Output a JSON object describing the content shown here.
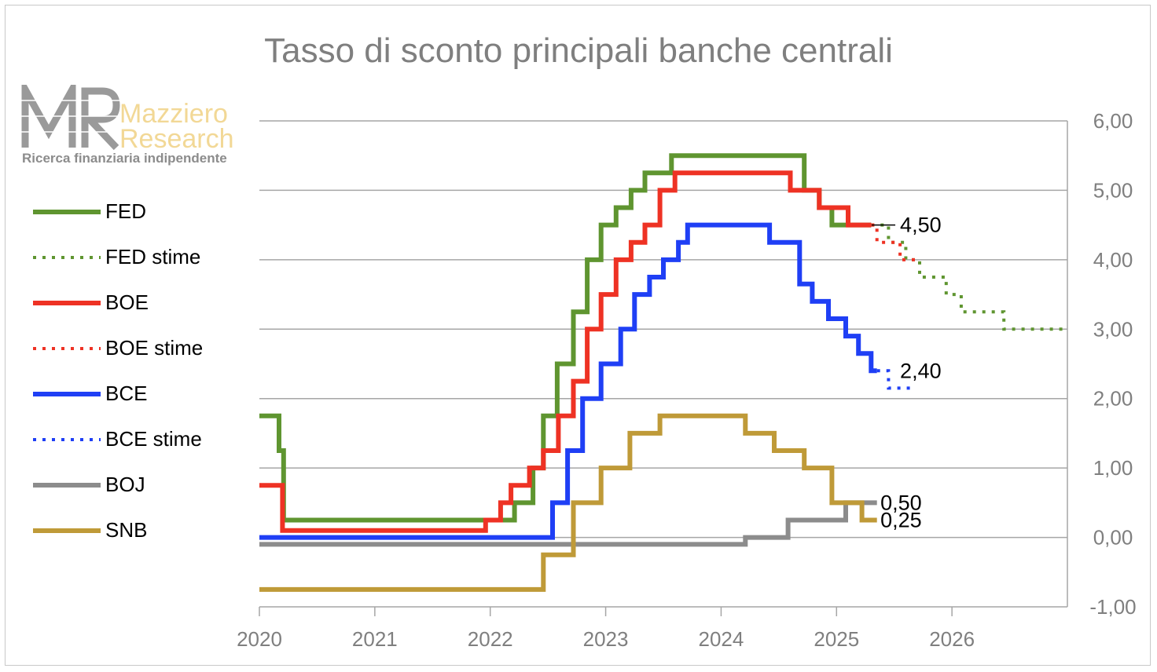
{
  "title": "Tasso di sconto principali banche centrali",
  "logo": {
    "mark": "MR",
    "name_line1": "Mazziero",
    "name_line2": "Research",
    "tagline": "Ricerca finanziaria indipendente"
  },
  "colors": {
    "fed": "#5f9530",
    "boe": "#ee3224",
    "bce": "#1f3ff5",
    "boj": "#8c8c8c",
    "snb": "#bf9a38",
    "grid": "#a6a6a6",
    "axis_text": "#7f7f7f",
    "title": "#7f7f7f"
  },
  "legend": [
    {
      "label": "FED",
      "series": "FED"
    },
    {
      "label": "FED stime",
      "series": "FED stime"
    },
    {
      "label": "BOE",
      "series": "BOE"
    },
    {
      "label": "BOE stime",
      "series": "BOE stime"
    },
    {
      "label": "BCE",
      "series": "BCE"
    },
    {
      "label": "BCE stime",
      "series": "BCE stime"
    },
    {
      "label": "BOJ",
      "series": "BOJ"
    },
    {
      "label": "SNB",
      "series": "SNB"
    }
  ],
  "chart_data": {
    "type": "line",
    "title": "Tasso di sconto principali banche centrali",
    "xlabel": "",
    "ylabel": "",
    "x_ticks": [
      "2020",
      "2021",
      "2022",
      "2023",
      "2024",
      "2025",
      "2026"
    ],
    "xlim": [
      2020,
      2027
    ],
    "y_ticks": [
      "6,00",
      "5,00",
      "4,00",
      "3,00",
      "2,00",
      "1,00",
      "0,00",
      "-1,00"
    ],
    "ylim": [
      -1,
      6
    ],
    "y_axis_side": "right",
    "grid": "horizontal",
    "legend_position": "left",
    "series": [
      {
        "name": "FED",
        "style": "solid",
        "color": "#5f9530",
        "points": [
          [
            2020.0,
            1.75
          ],
          [
            2020.17,
            1.75
          ],
          [
            2020.17,
            1.25
          ],
          [
            2020.21,
            1.25
          ],
          [
            2020.21,
            0.25
          ],
          [
            2022.21,
            0.25
          ],
          [
            2022.21,
            0.5
          ],
          [
            2022.37,
            0.5
          ],
          [
            2022.37,
            1.0
          ],
          [
            2022.46,
            1.0
          ],
          [
            2022.46,
            1.75
          ],
          [
            2022.58,
            1.75
          ],
          [
            2022.58,
            2.5
          ],
          [
            2022.72,
            2.5
          ],
          [
            2022.72,
            3.25
          ],
          [
            2022.84,
            3.25
          ],
          [
            2022.84,
            4.0
          ],
          [
            2022.96,
            4.0
          ],
          [
            2022.96,
            4.5
          ],
          [
            2023.09,
            4.5
          ],
          [
            2023.09,
            4.75
          ],
          [
            2023.22,
            4.75
          ],
          [
            2023.22,
            5.0
          ],
          [
            2023.34,
            5.0
          ],
          [
            2023.34,
            5.25
          ],
          [
            2023.57,
            5.25
          ],
          [
            2023.57,
            5.5
          ],
          [
            2024.72,
            5.5
          ],
          [
            2024.72,
            5.0
          ],
          [
            2024.85,
            5.0
          ],
          [
            2024.85,
            4.75
          ],
          [
            2024.96,
            4.75
          ],
          [
            2024.96,
            4.5
          ],
          [
            2025.3,
            4.5
          ]
        ]
      },
      {
        "name": "FED stime",
        "style": "dotted",
        "color": "#5f9530",
        "points": [
          [
            2025.3,
            4.5
          ],
          [
            2025.45,
            4.5
          ],
          [
            2025.45,
            4.25
          ],
          [
            2025.6,
            4.25
          ],
          [
            2025.6,
            4.0
          ],
          [
            2025.72,
            4.0
          ],
          [
            2025.72,
            3.75
          ],
          [
            2025.95,
            3.75
          ],
          [
            2025.95,
            3.5
          ],
          [
            2026.08,
            3.5
          ],
          [
            2026.08,
            3.25
          ],
          [
            2026.45,
            3.25
          ],
          [
            2026.45,
            3.0
          ],
          [
            2027.0,
            3.0
          ]
        ]
      },
      {
        "name": "BOE",
        "style": "solid",
        "color": "#ee3224",
        "points": [
          [
            2020.0,
            0.75
          ],
          [
            2020.2,
            0.75
          ],
          [
            2020.2,
            0.1
          ],
          [
            2021.96,
            0.1
          ],
          [
            2021.96,
            0.25
          ],
          [
            2022.09,
            0.25
          ],
          [
            2022.09,
            0.5
          ],
          [
            2022.18,
            0.5
          ],
          [
            2022.18,
            0.75
          ],
          [
            2022.34,
            0.75
          ],
          [
            2022.34,
            1.0
          ],
          [
            2022.46,
            1.0
          ],
          [
            2022.46,
            1.25
          ],
          [
            2022.59,
            1.25
          ],
          [
            2022.59,
            1.75
          ],
          [
            2022.72,
            1.75
          ],
          [
            2022.72,
            2.25
          ],
          [
            2022.84,
            2.25
          ],
          [
            2022.84,
            3.0
          ],
          [
            2022.96,
            3.0
          ],
          [
            2022.96,
            3.5
          ],
          [
            2023.09,
            3.5
          ],
          [
            2023.09,
            4.0
          ],
          [
            2023.22,
            4.0
          ],
          [
            2023.22,
            4.25
          ],
          [
            2023.34,
            4.25
          ],
          [
            2023.34,
            4.5
          ],
          [
            2023.47,
            4.5
          ],
          [
            2023.47,
            5.0
          ],
          [
            2023.6,
            5.0
          ],
          [
            2023.6,
            5.25
          ],
          [
            2024.6,
            5.25
          ],
          [
            2024.6,
            5.0
          ],
          [
            2024.85,
            5.0
          ],
          [
            2024.85,
            4.75
          ],
          [
            2025.1,
            4.75
          ],
          [
            2025.1,
            4.5
          ],
          [
            2025.3,
            4.5
          ]
        ]
      },
      {
        "name": "BOE stime",
        "style": "dotted",
        "color": "#ee3224",
        "points": [
          [
            2025.3,
            4.5
          ],
          [
            2025.35,
            4.5
          ],
          [
            2025.35,
            4.25
          ],
          [
            2025.55,
            4.25
          ],
          [
            2025.55,
            4.0
          ],
          [
            2025.72,
            4.0
          ]
        ]
      },
      {
        "name": "BCE",
        "style": "solid",
        "color": "#1f3ff5",
        "points": [
          [
            2020.0,
            0.0
          ],
          [
            2022.54,
            0.0
          ],
          [
            2022.54,
            0.5
          ],
          [
            2022.67,
            0.5
          ],
          [
            2022.67,
            1.25
          ],
          [
            2022.8,
            1.25
          ],
          [
            2022.8,
            2.0
          ],
          [
            2022.96,
            2.0
          ],
          [
            2022.96,
            2.5
          ],
          [
            2023.13,
            2.5
          ],
          [
            2023.13,
            3.0
          ],
          [
            2023.25,
            3.0
          ],
          [
            2023.25,
            3.5
          ],
          [
            2023.38,
            3.5
          ],
          [
            2023.38,
            3.75
          ],
          [
            2023.5,
            3.75
          ],
          [
            2023.5,
            4.0
          ],
          [
            2023.63,
            4.0
          ],
          [
            2023.63,
            4.25
          ],
          [
            2023.71,
            4.25
          ],
          [
            2023.71,
            4.5
          ],
          [
            2024.42,
            4.5
          ],
          [
            2024.42,
            4.25
          ],
          [
            2024.68,
            4.25
          ],
          [
            2024.68,
            3.65
          ],
          [
            2024.79,
            3.65
          ],
          [
            2024.79,
            3.4
          ],
          [
            2024.93,
            3.4
          ],
          [
            2024.93,
            3.15
          ],
          [
            2025.08,
            3.15
          ],
          [
            2025.08,
            2.9
          ],
          [
            2025.19,
            2.9
          ],
          [
            2025.19,
            2.65
          ],
          [
            2025.3,
            2.65
          ],
          [
            2025.3,
            2.4
          ],
          [
            2025.35,
            2.4
          ]
        ]
      },
      {
        "name": "BCE stime",
        "style": "dotted",
        "color": "#1f3ff5",
        "points": [
          [
            2025.35,
            2.4
          ],
          [
            2025.45,
            2.4
          ],
          [
            2025.45,
            2.15
          ],
          [
            2025.65,
            2.15
          ]
        ]
      },
      {
        "name": "BOJ",
        "style": "solid",
        "color": "#8c8c8c",
        "points": [
          [
            2020.0,
            -0.1
          ],
          [
            2024.21,
            -0.1
          ],
          [
            2024.21,
            0.0
          ],
          [
            2024.58,
            0.0
          ],
          [
            2024.58,
            0.25
          ],
          [
            2025.08,
            0.25
          ],
          [
            2025.08,
            0.5
          ],
          [
            2025.35,
            0.5
          ]
        ]
      },
      {
        "name": "SNB",
        "style": "solid",
        "color": "#bf9a38",
        "points": [
          [
            2020.0,
            -0.75
          ],
          [
            2022.46,
            -0.75
          ],
          [
            2022.46,
            -0.25
          ],
          [
            2022.72,
            -0.25
          ],
          [
            2022.72,
            0.5
          ],
          [
            2022.96,
            0.5
          ],
          [
            2022.96,
            1.0
          ],
          [
            2023.21,
            1.0
          ],
          [
            2023.21,
            1.5
          ],
          [
            2023.47,
            1.5
          ],
          [
            2023.47,
            1.75
          ],
          [
            2024.21,
            1.75
          ],
          [
            2024.21,
            1.5
          ],
          [
            2024.46,
            1.5
          ],
          [
            2024.46,
            1.25
          ],
          [
            2024.72,
            1.25
          ],
          [
            2024.72,
            1.0
          ],
          [
            2024.96,
            1.0
          ],
          [
            2024.96,
            0.5
          ],
          [
            2025.22,
            0.5
          ],
          [
            2025.22,
            0.25
          ],
          [
            2025.35,
            0.25
          ]
        ]
      }
    ],
    "annotations": [
      {
        "text": "4,50",
        "x": 2025.55,
        "y": 4.5,
        "color": "#000000",
        "leader": true
      },
      {
        "text": "2,40",
        "x": 2025.55,
        "y": 2.4,
        "color": "#000000",
        "leader": false
      },
      {
        "text": "0,50",
        "x": 2025.38,
        "y": 0.5,
        "color": "#000000",
        "leader": false
      },
      {
        "text": "0,25",
        "x": 2025.38,
        "y": 0.25,
        "color": "#000000",
        "leader": false
      }
    ]
  }
}
